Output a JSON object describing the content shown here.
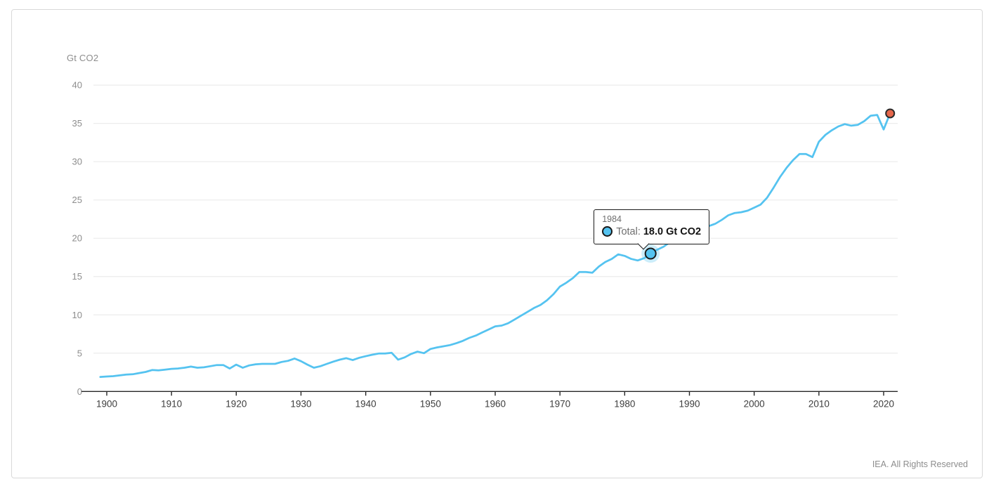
{
  "chart": {
    "unit_label": "Gt CO2",
    "footer": "IEA. All Rights Reserved"
  },
  "tooltip": {
    "year": "1984",
    "series_label": "Total:",
    "value_text": "18.0 Gt CO2"
  },
  "colors": {
    "line": "#55c3f0",
    "halo": "rgba(85,195,240,0.3)",
    "end_dot": "#e5674b",
    "axis_dark": "#262626",
    "gridline": "#ececec",
    "y_label": "#8d8d8d",
    "x_label": "#3d3d3d"
  },
  "chart_data": {
    "type": "line",
    "ylabel": "Gt CO2",
    "xlim": [
      1899,
      2021.5
    ],
    "ylim": [
      0,
      40
    ],
    "x_ticks": [
      1900,
      1910,
      1920,
      1930,
      1940,
      1950,
      1960,
      1970,
      1980,
      1990,
      2000,
      2010,
      2020
    ],
    "y_ticks": [
      0,
      5,
      10,
      15,
      20,
      25,
      30,
      35,
      40
    ],
    "grid": "horizontal",
    "legend": "none",
    "series": [
      {
        "name": "Total",
        "color": "#55c3f0",
        "x_start": 1899,
        "x_step": 1,
        "values": [
          1.9,
          1.95,
          2.0,
          2.1,
          2.2,
          2.25,
          2.4,
          2.55,
          2.8,
          2.75,
          2.85,
          2.95,
          3.0,
          3.1,
          3.25,
          3.1,
          3.15,
          3.3,
          3.45,
          3.45,
          3.0,
          3.5,
          3.1,
          3.4,
          3.55,
          3.6,
          3.6,
          3.6,
          3.85,
          4.0,
          4.3,
          3.95,
          3.5,
          3.1,
          3.3,
          3.6,
          3.9,
          4.15,
          4.35,
          4.1,
          4.4,
          4.6,
          4.8,
          4.95,
          4.95,
          5.05,
          4.15,
          4.45,
          4.9,
          5.2,
          5.0,
          5.55,
          5.75,
          5.9,
          6.05,
          6.3,
          6.6,
          7.0,
          7.3,
          7.7,
          8.1,
          8.5,
          8.6,
          8.9,
          9.4,
          9.9,
          10.4,
          10.9,
          11.3,
          11.9,
          12.7,
          13.7,
          14.2,
          14.8,
          15.6,
          15.6,
          15.5,
          16.3,
          16.9,
          17.3,
          17.9,
          17.7,
          17.3,
          17.1,
          17.4,
          18.0,
          18.5,
          18.9,
          19.5,
          20.2,
          20.7,
          21.0,
          21.3,
          21.4,
          21.6,
          21.9,
          22.4,
          23.0,
          23.3,
          23.4,
          23.6,
          24.0,
          24.4,
          25.3,
          26.6,
          28.0,
          29.2,
          30.2,
          31.0,
          31.0,
          30.6,
          32.6,
          33.5,
          34.1,
          34.6,
          34.9,
          34.7,
          34.8,
          35.3,
          36.0,
          36.1,
          34.2,
          36.3
        ]
      }
    ],
    "highlight_point": {
      "x": 1984,
      "y": 18.0,
      "label": "1984",
      "series": "Total",
      "color": "#55c3f0"
    },
    "end_point": {
      "x": 2021,
      "y": 36.3,
      "color": "#e5674b"
    }
  }
}
